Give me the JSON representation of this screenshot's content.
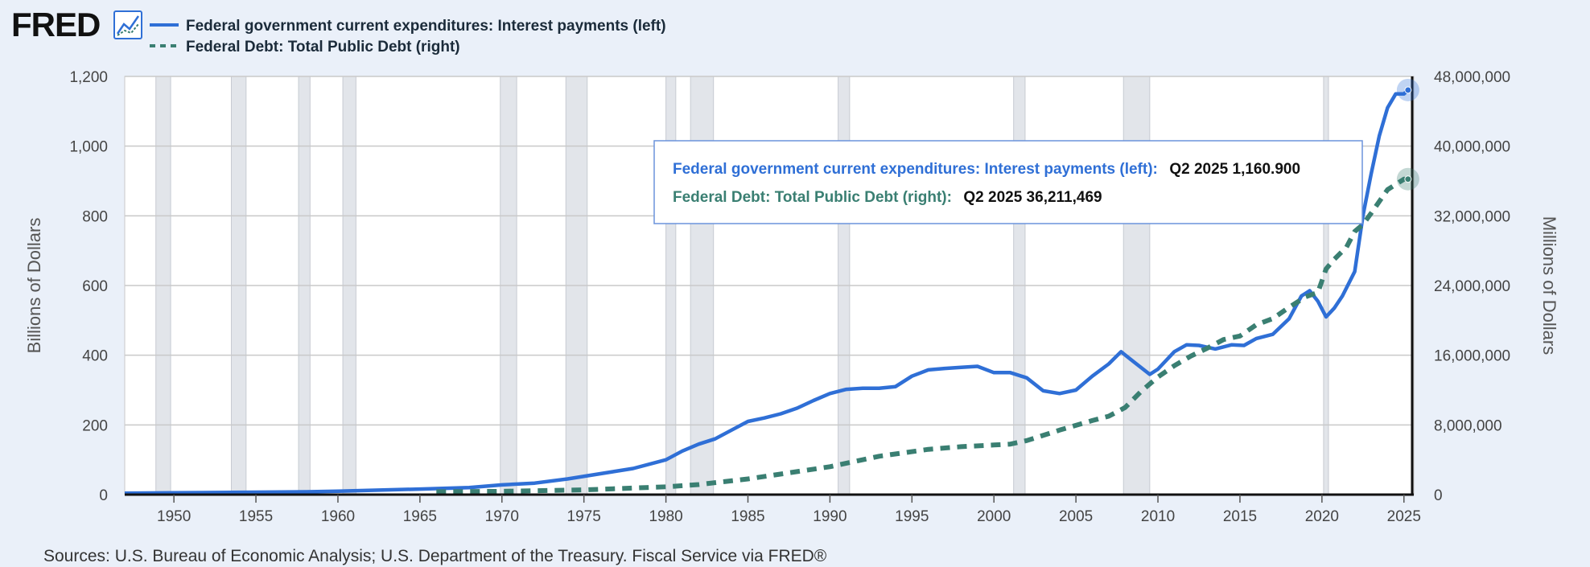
{
  "header": {
    "logo_text": "FRED",
    "logo_icon": "line-chart-icon"
  },
  "legend": [
    {
      "label": "Federal government current expenditures: Interest payments (left)",
      "color": "#2f6fd6",
      "style": "solid"
    },
    {
      "label": "Federal Debt: Total Public Debt (right)",
      "color": "#3a7f72",
      "style": "dashed"
    }
  ],
  "tooltip": {
    "rows": [
      {
        "label": "Federal government current expenditures: Interest payments (left):",
        "value": "Q2 2025 1,160.900"
      },
      {
        "label": "Federal Debt: Total Public Debt (right):",
        "value": "Q2 2025 36,211,469"
      }
    ]
  },
  "source_text": "Sources: U.S. Bureau of Economic Analysis; U.S. Department of the Treasury. Fiscal Service via FRED®",
  "colors": {
    "background": "#eaf0f9",
    "plot": "#ffffff",
    "grid": "#c9c9c9",
    "recession": "#e2e5ea",
    "interest": "#2f6fd6",
    "debt": "#3a7f72"
  },
  "chart_data": {
    "type": "line",
    "title": "",
    "xlabel": "",
    "ylabel": "Billions of Dollars",
    "y2label": "Millions of Dollars",
    "xlim": [
      1947,
      2025.6
    ],
    "ylim": [
      0,
      1200
    ],
    "y2lim": [
      0,
      48000000
    ],
    "x_ticks": [
      1950,
      1955,
      1960,
      1965,
      1970,
      1975,
      1980,
      1985,
      1990,
      1995,
      2000,
      2005,
      2010,
      2015,
      2020,
      2025
    ],
    "x_tick_labels": [
      "1950",
      "1955",
      "1960",
      "1965",
      "1970",
      "1975",
      "1980",
      "1985",
      "1990",
      "1995",
      "2000",
      "2005",
      "2010",
      "2015",
      "2020",
      "2025"
    ],
    "y_ticks": [
      0,
      200,
      400,
      600,
      800,
      1000,
      1200
    ],
    "y_tick_labels": [
      "0",
      "200",
      "400",
      "600",
      "800",
      "1,000",
      "1,200"
    ],
    "y2_ticks": [
      0,
      8000000,
      16000000,
      24000000,
      32000000,
      40000000,
      48000000
    ],
    "y2_tick_labels": [
      "0",
      "8,000,000",
      "16,000,000",
      "24,000,000",
      "32,000,000",
      "40,000,000",
      "48,000,000"
    ],
    "recessions": [
      [
        1948.9,
        1949.8
      ],
      [
        1953.5,
        1954.4
      ],
      [
        1957.6,
        1958.3
      ],
      [
        1960.3,
        1961.1
      ],
      [
        1969.9,
        1970.9
      ],
      [
        1973.9,
        1975.2
      ],
      [
        1980.0,
        1980.6
      ],
      [
        1981.5,
        1982.9
      ],
      [
        1990.5,
        1991.2
      ],
      [
        2001.2,
        2001.9
      ],
      [
        2007.9,
        2009.5
      ],
      [
        2020.1,
        2020.4
      ]
    ],
    "series": [
      {
        "name": "Federal government current expenditures: Interest payments (left)",
        "axis": "left",
        "x": [
          1947,
          1950,
          1955,
          1958,
          1960,
          1965,
          1968,
          1970,
          1972,
          1974,
          1976,
          1978,
          1980,
          1981,
          1982,
          1983,
          1984,
          1985,
          1986,
          1987,
          1988,
          1989,
          1990,
          1991,
          1992,
          1993,
          1994,
          1995,
          1996,
          1997,
          1998,
          1999,
          2000,
          2001,
          2002,
          2003,
          2004,
          2005,
          2006,
          2007,
          2007.75,
          2008.5,
          2009.5,
          2010,
          2011,
          2011.75,
          2012.5,
          2013.5,
          2014.5,
          2015.25,
          2016,
          2017,
          2018,
          2018.75,
          2019.25,
          2019.75,
          2020.25,
          2020.75,
          2021.25,
          2022,
          2022.5,
          2023,
          2023.5,
          2024,
          2024.5,
          2025,
          2025.25
        ],
        "values": [
          4,
          5,
          7,
          8,
          10,
          16,
          20,
          28,
          33,
          45,
          60,
          75,
          100,
          125,
          145,
          160,
          185,
          210,
          220,
          232,
          248,
          270,
          290,
          302,
          305,
          305,
          310,
          340,
          358,
          362,
          365,
          368,
          350,
          350,
          335,
          298,
          290,
          300,
          340,
          375,
          410,
          382,
          345,
          360,
          410,
          430,
          428,
          418,
          430,
          428,
          448,
          460,
          505,
          570,
          585,
          555,
          510,
          535,
          570,
          640,
          800,
          920,
          1030,
          1110,
          1150,
          1150,
          1160.9
        ]
      },
      {
        "name": "Federal Debt: Total Public Debt (right)",
        "axis": "right",
        "x": [
          1966,
          1970,
          1975,
          1980,
          1982,
          1985,
          1990,
          1993,
          1996,
          1998,
          2000,
          2001,
          2002,
          2004,
          2006,
          2007,
          2008,
          2009,
          2010,
          2011,
          2012,
          2013,
          2014,
          2015,
          2016,
          2017,
          2018,
          2019,
          2019.75,
          2020.25,
          2020.75,
          2021.5,
          2022,
          2022.5,
          2023,
          2024,
          2025,
          2025.25
        ],
        "values": [
          330000,
          380000,
          540000,
          900000,
          1150000,
          1800000,
          3200000,
          4400000,
          5200000,
          5500000,
          5700000,
          5800000,
          6200000,
          7400000,
          8500000,
          9000000,
          10000000,
          11900000,
          13500000,
          14800000,
          15900000,
          16800000,
          17800000,
          18200000,
          19500000,
          20200000,
          21500000,
          22700000,
          23200000,
          25900000,
          27000000,
          28400000,
          30200000,
          31000000,
          32300000,
          35000000,
          36200000,
          36211469
        ]
      }
    ]
  }
}
